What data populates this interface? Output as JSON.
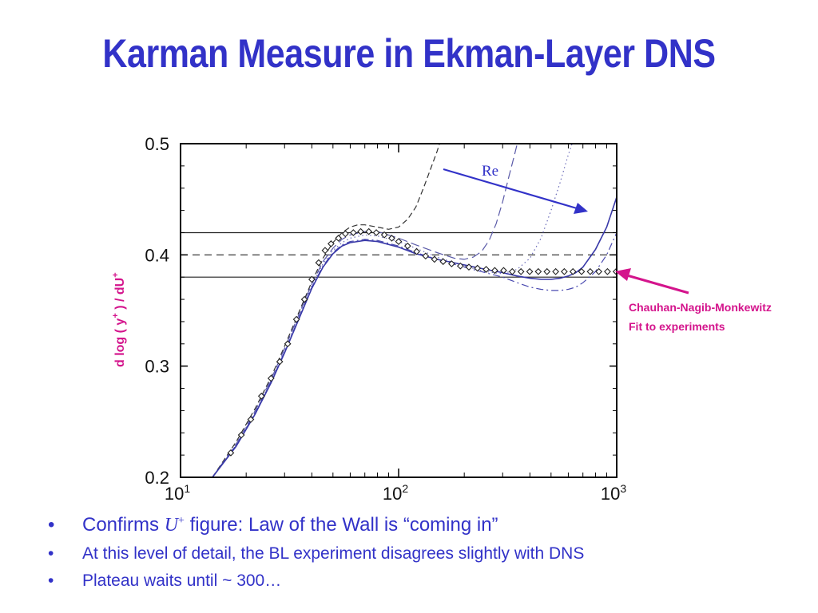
{
  "slide": {
    "title": "Karman Measure in Ekman-Layer DNS"
  },
  "chart_data": {
    "type": "line",
    "x_scale": "log",
    "xlim": [
      10,
      1000
    ],
    "ylim": [
      0.2,
      0.5
    ],
    "x_ticks": [
      {
        "value": 10,
        "base": "10",
        "exp": "1"
      },
      {
        "value": 100,
        "base": "10",
        "exp": "2"
      },
      {
        "value": 1000,
        "base": "10",
        "exp": "3"
      }
    ],
    "y_ticks": [
      {
        "value": 0.2,
        "label": "0.2"
      },
      {
        "value": 0.3,
        "label": "0.3"
      },
      {
        "value": 0.4,
        "label": "0.4"
      },
      {
        "value": 0.5,
        "label": "0.5"
      }
    ],
    "ylabel": {
      "main": "d log ( y",
      "sup1": "+",
      "mid": " ) / dU",
      "sup2": "+"
    },
    "hlines": [
      {
        "y": 0.42,
        "style": "solid"
      },
      {
        "y": 0.4,
        "style": "dashed"
      },
      {
        "y": 0.38,
        "style": "solid"
      }
    ],
    "series": [
      {
        "style": "dashed",
        "color": "#333333",
        "x": [
          14,
          18,
          22,
          26,
          30,
          35,
          40,
          45,
          50,
          55,
          60,
          65,
          70,
          80,
          90,
          100,
          110,
          120,
          130,
          140,
          150,
          160,
          170,
          180,
          190
        ],
        "y": [
          0.2,
          0.232,
          0.262,
          0.29,
          0.318,
          0.349,
          0.376,
          0.397,
          0.411,
          0.42,
          0.425,
          0.427,
          0.427,
          0.425,
          0.423,
          0.425,
          0.432,
          0.443,
          0.46,
          0.477,
          0.493,
          0.51,
          0.525,
          0.54,
          0.555
        ]
      },
      {
        "style": "long-dashed",
        "color": "#5a5aa8",
        "x": [
          14,
          18,
          22,
          26,
          30,
          35,
          40,
          45,
          50,
          55,
          60,
          70,
          80,
          100,
          120,
          150,
          180,
          200,
          220,
          240,
          260,
          280,
          300,
          320,
          340,
          360
        ],
        "y": [
          0.2,
          0.23,
          0.26,
          0.288,
          0.316,
          0.347,
          0.374,
          0.394,
          0.406,
          0.414,
          0.418,
          0.421,
          0.421,
          0.415,
          0.409,
          0.402,
          0.397,
          0.396,
          0.398,
          0.403,
          0.413,
          0.428,
          0.448,
          0.47,
          0.49,
          0.51
        ]
      },
      {
        "style": "dotted",
        "color": "#6a6ab8",
        "x": [
          14,
          18,
          22,
          26,
          30,
          35,
          40,
          45,
          50,
          55,
          60,
          70,
          80,
          100,
          120,
          150,
          180,
          200,
          250,
          300,
          350,
          400,
          450,
          500,
          550,
          600,
          650
        ],
        "y": [
          0.2,
          0.229,
          0.259,
          0.287,
          0.315,
          0.346,
          0.373,
          0.392,
          0.404,
          0.411,
          0.415,
          0.418,
          0.417,
          0.412,
          0.406,
          0.398,
          0.393,
          0.39,
          0.385,
          0.383,
          0.387,
          0.397,
          0.415,
          0.44,
          0.465,
          0.49,
          0.51
        ]
      },
      {
        "style": "dashdot",
        "color": "#4a4ab0",
        "x": [
          14,
          18,
          22,
          26,
          30,
          35,
          40,
          45,
          50,
          55,
          60,
          70,
          80,
          100,
          120,
          150,
          200,
          250,
          300,
          350,
          400,
          450,
          500,
          550,
          600,
          650,
          700,
          800,
          900,
          1000
        ],
        "y": [
          0.2,
          0.229,
          0.258,
          0.286,
          0.313,
          0.344,
          0.371,
          0.39,
          0.402,
          0.409,
          0.412,
          0.414,
          0.413,
          0.408,
          0.402,
          0.396,
          0.389,
          0.384,
          0.38,
          0.375,
          0.371,
          0.369,
          0.368,
          0.368,
          0.369,
          0.371,
          0.375,
          0.385,
          0.4,
          0.42
        ]
      },
      {
        "style": "solid",
        "color": "#3838a8",
        "x": [
          14,
          18,
          22,
          26,
          30,
          35,
          40,
          45,
          50,
          55,
          60,
          70,
          80,
          100,
          120,
          150,
          200,
          250,
          300,
          350,
          400,
          450,
          500,
          550,
          600,
          650,
          700,
          800,
          900,
          1000
        ],
        "y": [
          0.2,
          0.228,
          0.257,
          0.285,
          0.312,
          0.343,
          0.37,
          0.389,
          0.401,
          0.408,
          0.411,
          0.413,
          0.412,
          0.407,
          0.401,
          0.396,
          0.391,
          0.387,
          0.384,
          0.381,
          0.379,
          0.378,
          0.378,
          0.379,
          0.381,
          0.384,
          0.389,
          0.405,
          0.425,
          0.452
        ]
      },
      {
        "style": "markers",
        "marker": "diamond",
        "color": "#222222",
        "x": [
          17,
          19,
          21,
          23.5,
          26,
          28.5,
          31,
          34,
          37,
          40,
          43,
          46,
          49,
          53,
          57,
          62,
          67,
          73,
          79,
          86,
          93,
          100,
          110,
          121,
          133,
          146,
          160,
          175,
          192,
          210,
          230,
          252,
          276,
          303,
          332,
          364,
          399,
          437,
          479,
          525,
          575,
          630,
          690,
          756,
          828,
          907,
          994
        ],
        "y": [
          0.222,
          0.238,
          0.252,
          0.273,
          0.289,
          0.304,
          0.32,
          0.342,
          0.36,
          0.378,
          0.393,
          0.404,
          0.41,
          0.415,
          0.419,
          0.42,
          0.421,
          0.421,
          0.42,
          0.418,
          0.415,
          0.412,
          0.408,
          0.403,
          0.399,
          0.396,
          0.394,
          0.392,
          0.39,
          0.389,
          0.388,
          0.387,
          0.386,
          0.386,
          0.385,
          0.385,
          0.385,
          0.385,
          0.385,
          0.385,
          0.385,
          0.385,
          0.385,
          0.385,
          0.385,
          0.385,
          0.385
        ]
      }
    ],
    "annotations": {
      "re_label": "Re",
      "re_color": "#3232c8",
      "fit_label_line1": "Chauhan-Nagib-Monkewitz",
      "fit_label_line2": "Fit to experiments",
      "fit_color": "#d4148c"
    }
  },
  "bullets": {
    "b1_prefix": "Confirms ",
    "b1_u": "U",
    "b1_sup": "+",
    "b1_suffix": " figure: Law of the Wall is “coming in”",
    "b2": "At this level of detail, the BL experiment disagrees slightly with DNS",
    "b3": "Plateau waits until ~ 300…",
    "marker": "•"
  },
  "colors": {
    "title": "#3232c8",
    "text": "#3232c8",
    "ylabel": "#d4148c"
  }
}
